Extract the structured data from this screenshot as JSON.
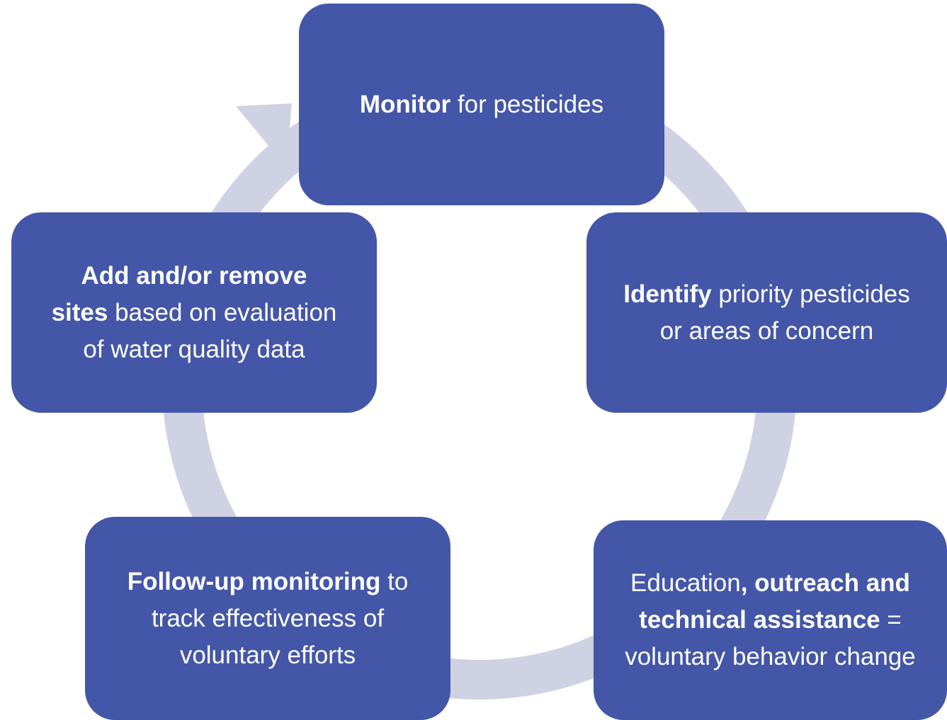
{
  "nodes": [
    {
      "parts": [
        {
          "text": "Monitor",
          "bold": true
        },
        {
          "text": " for pesticides",
          "bold": false
        }
      ]
    },
    {
      "parts": [
        {
          "text": "Identify",
          "bold": true
        },
        {
          "text": " priority pesticides or areas of concern",
          "bold": false
        }
      ]
    },
    {
      "parts": [
        {
          "text": "Education",
          "bold": false
        },
        {
          "text": ", outreach and technical assistance",
          "bold": true
        },
        {
          "text": " = voluntary behavior change",
          "bold": false
        }
      ]
    },
    {
      "parts": [
        {
          "text": "Follow-up monitoring",
          "bold": true
        },
        {
          "text": " to track effectiveness of voluntary efforts",
          "bold": false
        }
      ]
    },
    {
      "parts": [
        {
          "text": "Add and/or remove sites",
          "bold": true
        },
        {
          "text": " based on evaluation of water quality data",
          "bold": false
        }
      ]
    }
  ]
}
